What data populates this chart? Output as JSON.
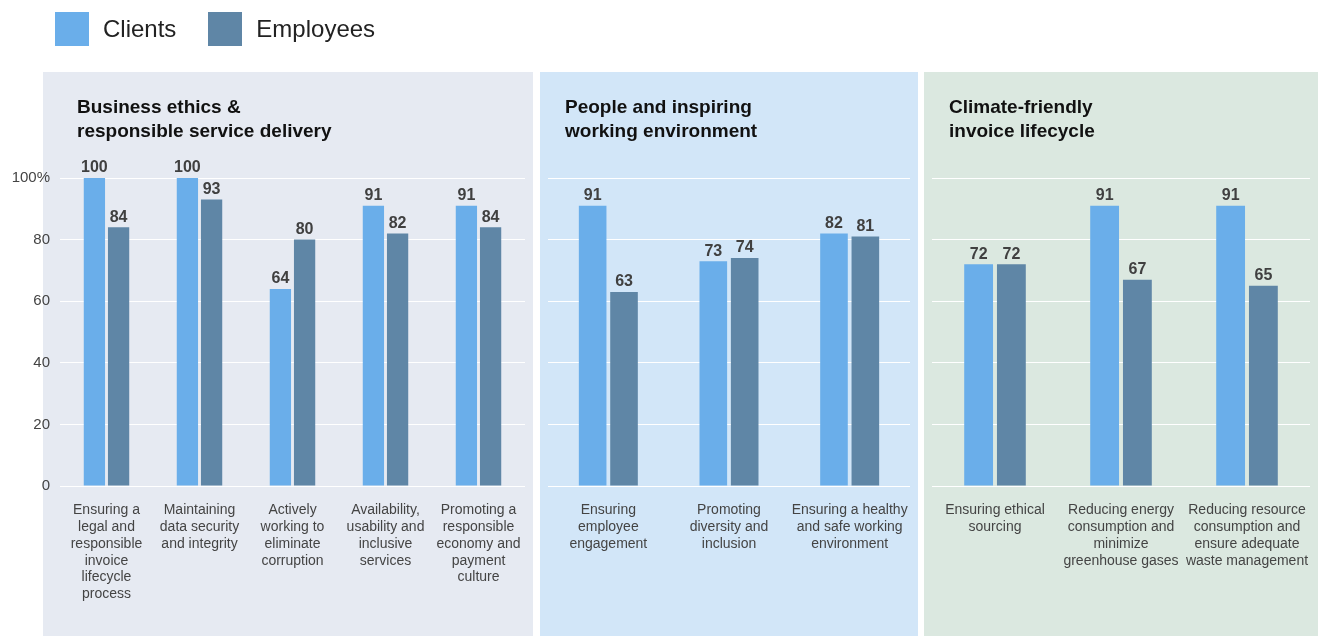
{
  "chart_data": [
    {
      "type": "bar",
      "title": "Business ethics &\nresponsible service delivery",
      "categories": [
        "Ensuring a legal and responsible invoice lifecycle process",
        "Maintaining data security and integrity",
        "Actively working to eliminate corruption",
        "Availability, usability and inclusive services",
        "Promoting a responsible economy and payment culture"
      ],
      "series": [
        {
          "name": "Clients",
          "color": "#6aaeea",
          "values": [
            100,
            100,
            64,
            91,
            91
          ]
        },
        {
          "name": "Employees",
          "color": "#5f86a6",
          "values": [
            84,
            93,
            80,
            82,
            84
          ]
        }
      ],
      "ylim": [
        0,
        100
      ],
      "yticks": [
        0,
        20,
        40,
        60,
        80,
        {
          "value": 100,
          "label": "100%"
        }
      ],
      "grid": "y",
      "legend": "top left",
      "data_labels": true
    },
    {
      "type": "bar",
      "title": "People and inspiring\nworking environment",
      "categories": [
        "Ensuring employee engagement",
        "Promoting diversity and inclusion",
        "Ensuring a healthy and safe working environment"
      ],
      "series": [
        {
          "name": "Clients",
          "color": "#6aaeea",
          "values": [
            91,
            73,
            82
          ]
        },
        {
          "name": "Employees",
          "color": "#5f86a6",
          "values": [
            63,
            74,
            81
          ]
        }
      ],
      "ylim": [
        0,
        100
      ],
      "yticks": [
        0,
        20,
        40,
        60,
        80,
        100
      ],
      "grid": "y",
      "tick_labels": "x",
      "data_labels": true
    },
    {
      "type": "bar",
      "title": "Climate-friendly\ninvoice lifecycle",
      "categories": [
        "Ensuring ethical sourcing",
        "Reducing energy consumption and minimize greenhouse gases",
        "Reducing resource consumption and ensure adequate waste management"
      ],
      "series": [
        {
          "name": "Clients",
          "color": "#6aaeea",
          "values": [
            72,
            91,
            91
          ]
        },
        {
          "name": "Employees",
          "color": "#5f86a6",
          "values": [
            72,
            67,
            65
          ]
        }
      ],
      "ylim": [
        0,
        100
      ],
      "yticks": [
        0,
        20,
        40,
        60,
        80,
        100
      ],
      "grid": "y",
      "tick_labels": "x",
      "data_labels": true
    }
  ]
}
